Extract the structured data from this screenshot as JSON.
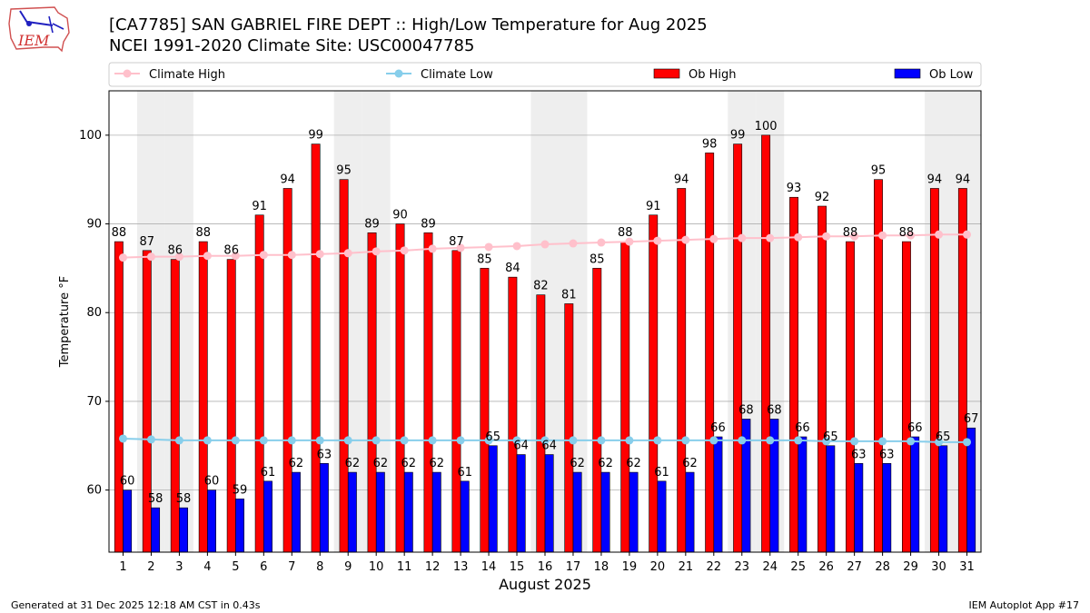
{
  "header": {
    "title_line1": "[CA7785] SAN GABRIEL FIRE DEPT :: High/Low Temperature for Aug 2025",
    "title_line2": "NCEI 1991-2020 Climate Site: USC00047785",
    "logo_text": "IEM"
  },
  "footer": {
    "generated": "Generated at 31 Dec 2025 12:18 AM CST in 0.43s",
    "app": "IEM Autoplot App #17"
  },
  "chart_data": {
    "type": "bar",
    "title": "[CA7785] SAN GABRIEL FIRE DEPT :: High/Low Temperature for Aug 2025",
    "subtitle": "NCEI 1991-2020 Climate Site: USC00047785",
    "xlabel": "August 2025",
    "ylabel": "Temperature °F",
    "ylim": [
      53,
      105
    ],
    "yticks": [
      60,
      70,
      80,
      90,
      100
    ],
    "grid": true,
    "legend_position": "top",
    "categories": [
      "1",
      "2",
      "3",
      "4",
      "5",
      "6",
      "7",
      "8",
      "9",
      "10",
      "11",
      "12",
      "13",
      "14",
      "15",
      "16",
      "17",
      "18",
      "19",
      "20",
      "21",
      "22",
      "23",
      "24",
      "25",
      "26",
      "27",
      "28",
      "29",
      "30",
      "31"
    ],
    "weekend_days": [
      2,
      3,
      9,
      10,
      16,
      17,
      23,
      24,
      30,
      31
    ],
    "series": [
      {
        "name": "Ob High",
        "kind": "bar",
        "color": "#ff0000",
        "values": [
          88,
          87,
          86,
          88,
          86,
          91,
          94,
          99,
          95,
          89,
          90,
          89,
          87,
          85,
          84,
          82,
          81,
          85,
          88,
          91,
          94,
          98,
          99,
          100,
          93,
          92,
          88,
          95,
          88,
          94,
          94
        ]
      },
      {
        "name": "Ob Low",
        "kind": "bar",
        "color": "#0000ff",
        "values": [
          60,
          58,
          58,
          60,
          59,
          61,
          62,
          63,
          62,
          62,
          62,
          62,
          61,
          65,
          64,
          64,
          62,
          62,
          62,
          61,
          62,
          66,
          68,
          68,
          66,
          65,
          63,
          63,
          66,
          65,
          67
        ]
      },
      {
        "name": "Climate High",
        "kind": "line",
        "color": "#ffc0cb",
        "values": [
          86.2,
          86.3,
          86.3,
          86.4,
          86.4,
          86.5,
          86.5,
          86.6,
          86.7,
          86.9,
          87.0,
          87.2,
          87.3,
          87.4,
          87.5,
          87.7,
          87.8,
          87.9,
          88.0,
          88.1,
          88.2,
          88.3,
          88.4,
          88.4,
          88.5,
          88.6,
          88.6,
          88.7,
          88.7,
          88.8,
          88.8
        ]
      },
      {
        "name": "Climate Low",
        "kind": "line",
        "color": "#87ceeb",
        "values": [
          65.8,
          65.7,
          65.6,
          65.6,
          65.6,
          65.6,
          65.6,
          65.6,
          65.6,
          65.6,
          65.6,
          65.6,
          65.6,
          65.6,
          65.6,
          65.6,
          65.6,
          65.6,
          65.6,
          65.6,
          65.6,
          65.6,
          65.6,
          65.6,
          65.6,
          65.5,
          65.5,
          65.5,
          65.5,
          65.4,
          65.4
        ]
      }
    ],
    "legend": [
      "Climate High",
      "Climate Low",
      "Ob High",
      "Ob Low"
    ]
  }
}
